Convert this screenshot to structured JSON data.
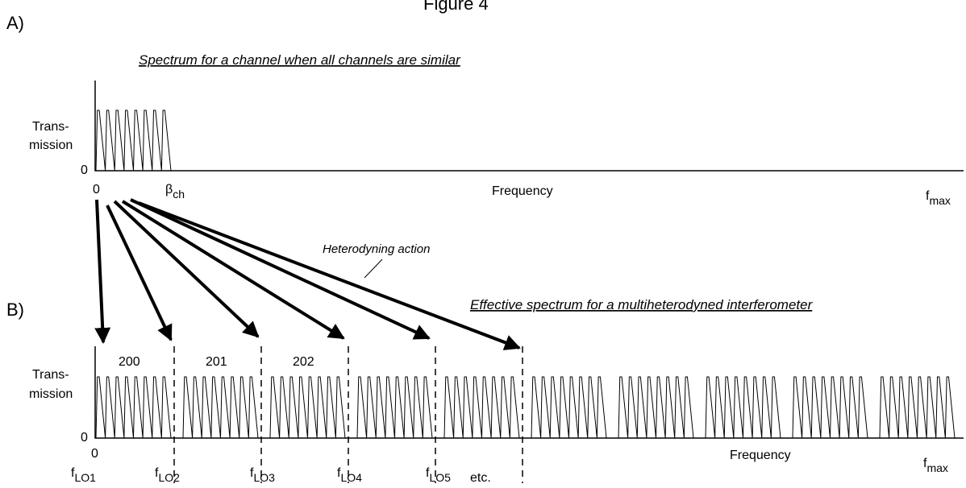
{
  "title": "Figure 4",
  "panel_a": {
    "label": "A)",
    "caption": "Spectrum for a channel when all channels are similar",
    "y_label": [
      "Trans-",
      "mission"
    ],
    "y_zero": "0",
    "x_zero": "0",
    "beta": {
      "main": "β",
      "sub": "ch"
    },
    "x_label": "Frequency",
    "fmax": {
      "main": "f",
      "sub": "max"
    }
  },
  "annotation": "Heterodyning action",
  "panel_b": {
    "label": "B)",
    "caption": "Effective spectrum for a multiheterodyned interferometer",
    "y_label": [
      "Trans-",
      "mission"
    ],
    "y_zero": "0",
    "x_zero": "0",
    "channels": [
      "200",
      "201",
      "202"
    ],
    "lo_labels": [
      {
        "main": "f",
        "sub": "LO1"
      },
      {
        "main": "f",
        "sub": "LO2"
      },
      {
        "main": "f",
        "sub": "LO3"
      },
      {
        "main": "f",
        "sub": "LO4"
      },
      {
        "main": "f",
        "sub": "LO5"
      }
    ],
    "etc": "etc.",
    "x_label": "Frequency",
    "fmax": {
      "main": "f",
      "sub": "max"
    }
  }
}
